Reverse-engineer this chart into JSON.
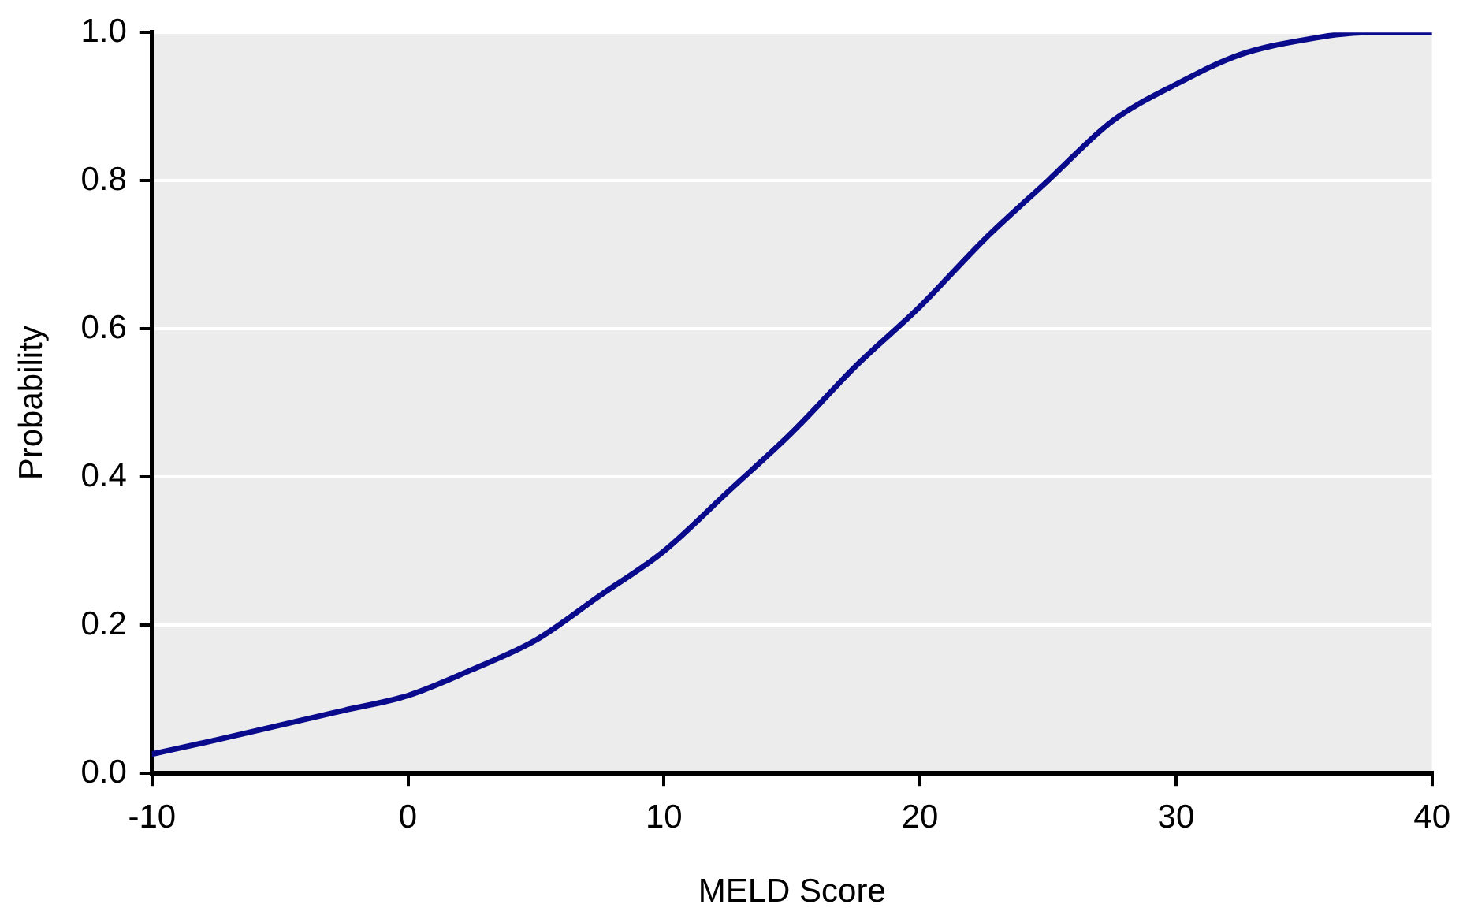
{
  "chart_data": {
    "type": "line",
    "xlabel": "MELD Score",
    "ylabel": "Probability",
    "x": [
      -10,
      -7.5,
      -5,
      -2.5,
      0,
      2.5,
      5,
      7.5,
      10,
      12.5,
      15,
      17.5,
      20,
      22.5,
      25,
      27.5,
      30,
      32.5,
      35,
      37.5,
      40
    ],
    "series": [
      {
        "color": "#0a0a8c",
        "values": [
          0.026,
          0.045,
          0.065,
          0.085,
          0.105,
          0.14,
          0.18,
          0.24,
          0.3,
          0.38,
          0.46,
          0.55,
          0.63,
          0.72,
          0.8,
          0.88,
          0.93,
          0.97,
          0.99,
          1.0,
          1.0
        ]
      }
    ],
    "xlim": [
      -10,
      40
    ],
    "xticks": [
      -10,
      0,
      10,
      20,
      30,
      40
    ],
    "ylim": [
      0,
      1
    ],
    "yticks": [
      {
        "value": 0,
        "label": "0.0"
      },
      {
        "value": 0.2,
        "label": "0.2"
      },
      {
        "value": 0.4,
        "label": "0.4"
      },
      {
        "value": 0.6,
        "label": "0.6"
      },
      {
        "value": 0.8,
        "label": "0.8"
      },
      {
        "value": 1,
        "label": "1.0"
      }
    ],
    "grid": "y",
    "legend": false,
    "marker": "none",
    "line_style": "solid"
  }
}
